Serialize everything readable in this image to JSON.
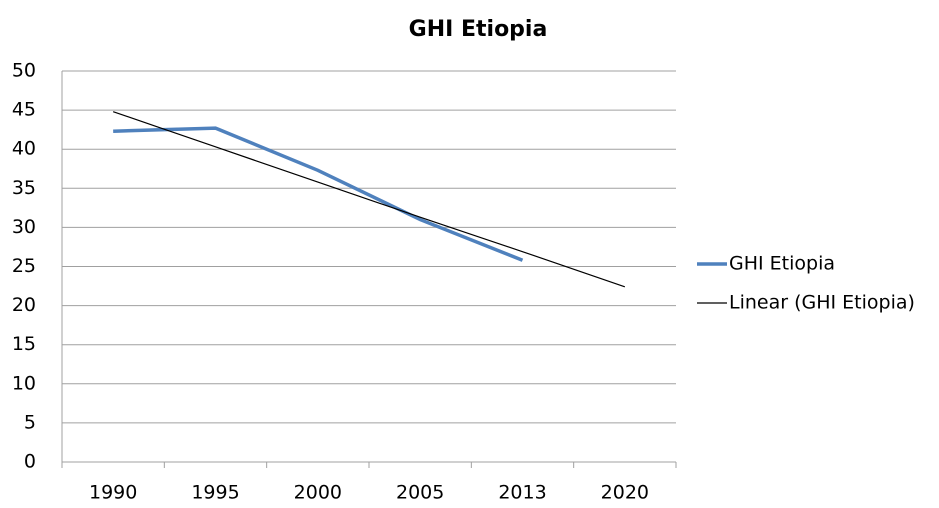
{
  "chart_data": {
    "type": "line",
    "title": "GHI Etiopia",
    "categories": [
      "1990",
      "1995",
      "2000",
      "2005",
      "2013",
      "2020"
    ],
    "series": [
      {
        "name": "GHI Etiopia",
        "color": "#4f81bd",
        "values": [
          42.3,
          42.7,
          37.3,
          31.0,
          25.8,
          null
        ]
      },
      {
        "name": "Linear (GHI Etiopia)",
        "color": "#000000",
        "values": [
          44.8,
          40.3,
          35.8,
          31.3,
          26.9,
          22.4
        ]
      }
    ],
    "ylim": [
      0,
      50
    ],
    "yticks": [
      0,
      5,
      10,
      15,
      20,
      25,
      30,
      35,
      40,
      45,
      50
    ],
    "grid": true,
    "legend": "right"
  }
}
